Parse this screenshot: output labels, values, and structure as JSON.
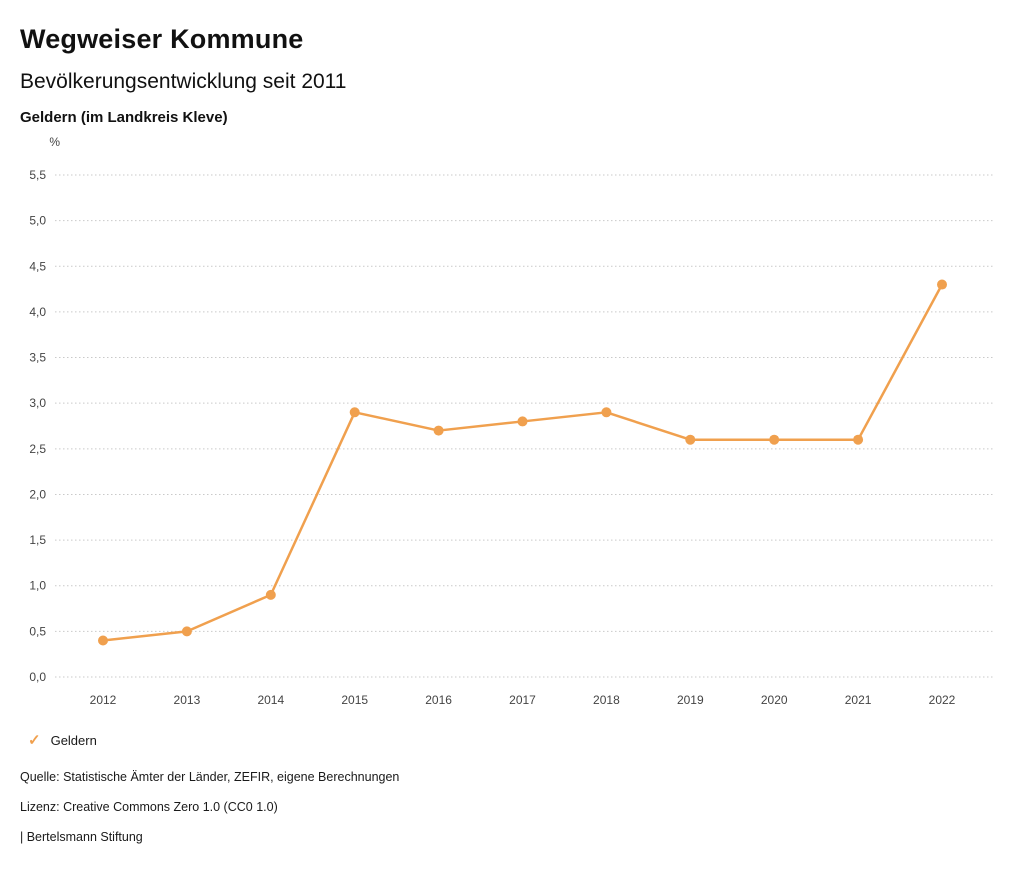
{
  "header": {
    "title": "Wegweiser Kommune",
    "subtitle": "Bevölkerungsentwicklung seit 2011",
    "location": "Geldern (im Landkreis Kleve)"
  },
  "chart_data": {
    "type": "line",
    "title": "Bevölkerungsentwicklung seit 2011",
    "subtitle": "Geldern (im Landkreis Kleve)",
    "categories": [
      "2012",
      "2013",
      "2014",
      "2015",
      "2016",
      "2017",
      "2018",
      "2019",
      "2020",
      "2021",
      "2022"
    ],
    "series": [
      {
        "name": "Geldern",
        "color": "#f0a04e",
        "values": [
          0.4,
          0.5,
          0.9,
          2.9,
          2.7,
          2.8,
          2.9,
          2.6,
          2.6,
          2.6,
          4.3
        ]
      }
    ],
    "xlabel": "",
    "ylabel": "%",
    "ylim": [
      0,
      5.5
    ],
    "yticks": [
      0,
      0.5,
      1,
      1.5,
      2,
      2.5,
      3,
      3.5,
      4,
      4.5,
      5,
      5.5
    ],
    "ytick_label_format": "comma-decimal",
    "grid": true,
    "gridline_style": "dotted",
    "legend_position": "bottom-left"
  },
  "legend": {
    "marker_glyph": "✓",
    "label": "Geldern"
  },
  "footer": {
    "source": "Quelle: Statistische Ämter der Länder, ZEFIR, eigene Berechnungen",
    "license": "Lizenz: Creative Commons Zero 1.0 (CC0 1.0)",
    "attribution": "| Bertelsmann Stiftung"
  },
  "colors": {
    "accent": "#f0a04e",
    "text": "#1a1a1a",
    "grid": "#c9c9c9",
    "axis_text": "#444444"
  }
}
